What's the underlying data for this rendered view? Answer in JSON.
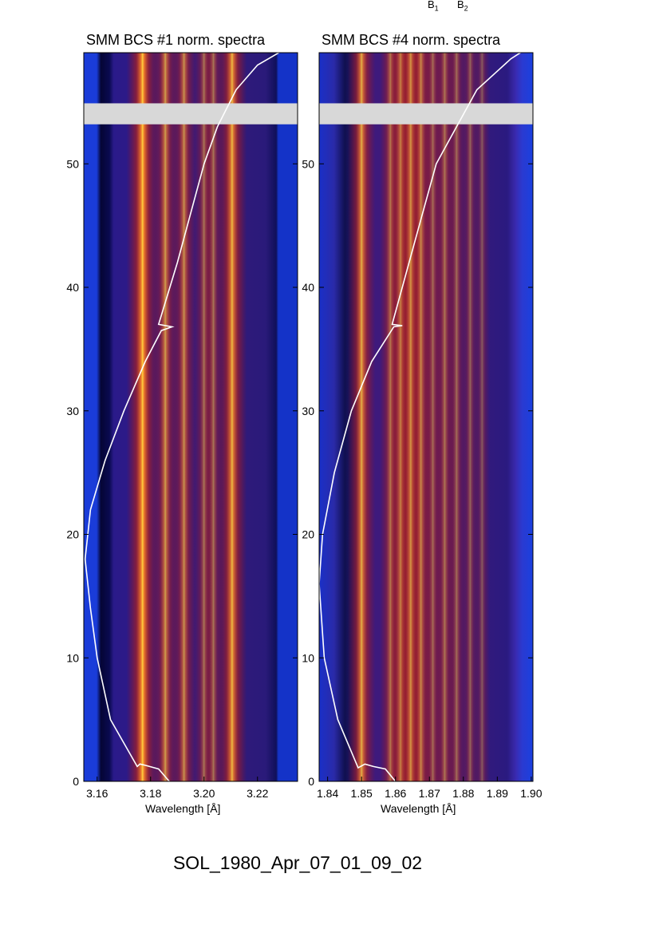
{
  "header": {
    "labels": [
      {
        "letter": "B",
        "sub": "1"
      },
      {
        "letter": "B",
        "sub": "2"
      }
    ]
  },
  "footer": {
    "title": "SOL_1980_Apr_07_01_09_02"
  },
  "colors": {
    "background": "#000033",
    "gap": "#d8d8d8",
    "curve": "#ffffff"
  },
  "chart_data": [
    {
      "type": "heatmap",
      "title": "SMM BCS #1 norm. spectra",
      "xlabel": "Wavelength [Å]",
      "ylabel": "",
      "xlim": [
        3.155,
        3.235
      ],
      "ylim": [
        0,
        59
      ],
      "xticks": [
        3.16,
        3.18,
        3.2,
        3.22
      ],
      "xtick_labels": [
        "3.16",
        "3.18",
        "3.20",
        "3.22"
      ],
      "yticks": [
        0,
        10,
        20,
        30,
        40,
        50
      ],
      "ytick_labels": [
        "0",
        "10",
        "20",
        "30",
        "40",
        "50"
      ],
      "data_gap_y": [
        53.2,
        54.9
      ],
      "spectral_lines": [
        {
          "wavelength": 3.177,
          "strength": 1.0
        },
        {
          "wavelength": 3.1855,
          "strength": 0.75
        },
        {
          "wavelength": 3.1925,
          "strength": 0.7
        },
        {
          "wavelength": 3.2,
          "strength": 0.55
        },
        {
          "wavelength": 3.2035,
          "strength": 0.55
        },
        {
          "wavelength": 3.2105,
          "strength": 0.9
        }
      ],
      "overlay_curve": {
        "x": [
          3.187,
          3.183,
          3.178,
          3.176,
          3.175,
          3.165,
          3.16,
          3.1575,
          3.1555,
          3.1575,
          3.163,
          3.17,
          3.178,
          3.184,
          3.188,
          3.183,
          3.19,
          3.195,
          3.2,
          3.205,
          3.212,
          3.22,
          3.228,
          3.234
        ],
        "y": [
          0,
          1.0,
          1.3,
          1.4,
          1.2,
          5,
          10,
          14,
          18,
          22,
          26,
          30,
          34,
          36.5,
          36.8,
          37,
          42,
          46,
          50,
          53,
          56,
          58,
          59,
          60
        ]
      }
    },
    {
      "type": "heatmap",
      "title": "SMM BCS #4 norm. spectra",
      "xlabel": "Wavelength [Å]",
      "ylabel": "",
      "xlim": [
        1.8375,
        1.9005
      ],
      "ylim": [
        0,
        59
      ],
      "xticks": [
        1.84,
        1.85,
        1.86,
        1.87,
        1.88,
        1.89,
        1.9
      ],
      "xtick_labels": [
        "1.84",
        "1.85",
        "1.86",
        "1.87",
        "1.88",
        "1.89",
        "1.90"
      ],
      "yticks": [
        0,
        10,
        20,
        30,
        40,
        50
      ],
      "ytick_labels": [
        "0",
        "10",
        "20",
        "30",
        "40",
        "50"
      ],
      "data_gap_y": [
        53.2,
        54.9
      ],
      "spectral_lines": [
        {
          "wavelength": 1.85,
          "strength": 0.85
        },
        {
          "wavelength": 1.8585,
          "strength": 0.6
        },
        {
          "wavelength": 1.8615,
          "strength": 0.7
        },
        {
          "wavelength": 1.8645,
          "strength": 0.75
        },
        {
          "wavelength": 1.8675,
          "strength": 0.65
        },
        {
          "wavelength": 1.871,
          "strength": 0.5
        },
        {
          "wavelength": 1.8745,
          "strength": 0.55
        },
        {
          "wavelength": 1.878,
          "strength": 0.5
        },
        {
          "wavelength": 1.882,
          "strength": 0.45
        },
        {
          "wavelength": 1.8855,
          "strength": 0.4
        }
      ],
      "overlay_curve": {
        "x": [
          1.86,
          1.857,
          1.8535,
          1.851,
          1.849,
          1.843,
          1.839,
          1.8375,
          1.8385,
          1.842,
          1.847,
          1.853,
          1.8595,
          1.862,
          1.859,
          1.864,
          1.868,
          1.872,
          1.878,
          1.884,
          1.89,
          1.894,
          1.8985,
          1.9
        ],
        "y": [
          0,
          1.0,
          1.2,
          1.4,
          1.1,
          5,
          10,
          16,
          20,
          25,
          30,
          34,
          36.8,
          36.9,
          37,
          42,
          46,
          50,
          53,
          56,
          57.5,
          58.5,
          59.3,
          60
        ]
      }
    }
  ]
}
